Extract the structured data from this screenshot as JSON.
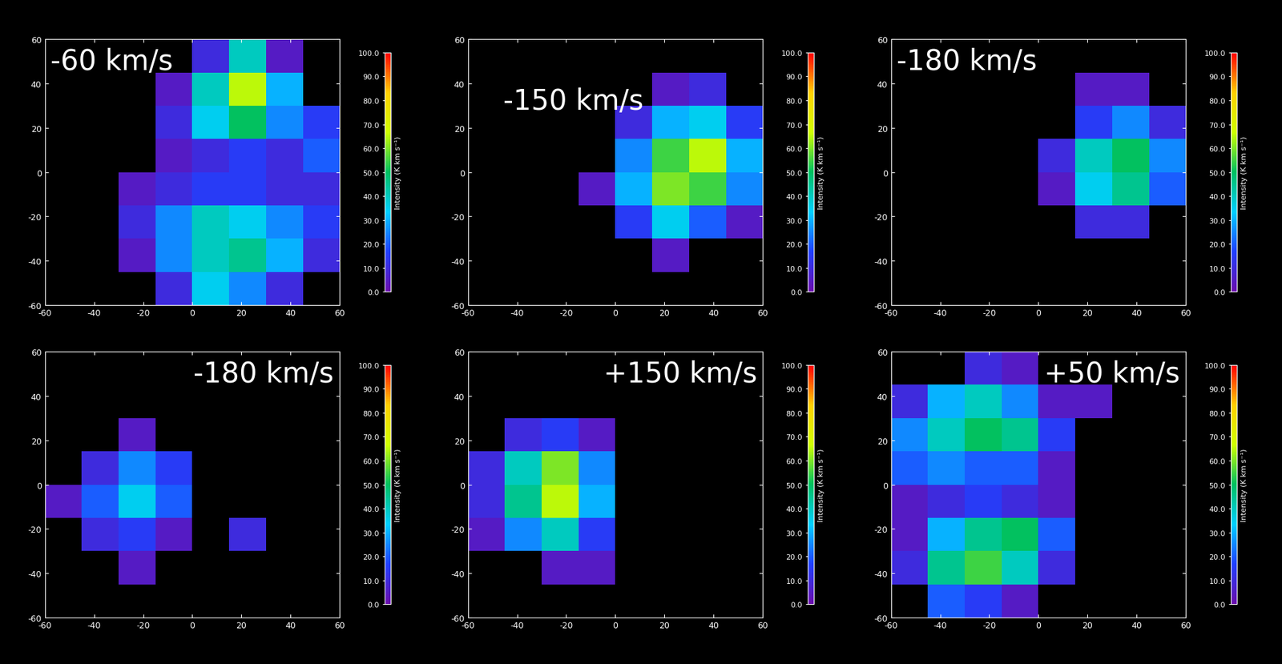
{
  "chart_data": [
    {
      "type": "heatmap",
      "title": "-60 km/s",
      "x": [
        -52.5,
        -37.5,
        -22.5,
        -7.5,
        7.5,
        22.5,
        37.5,
        52.5
      ],
      "y": [
        52.5,
        37.5,
        22.5,
        7.5,
        -7.5,
        -22.5,
        -37.5,
        -52.5
      ],
      "cells": [
        [
          0,
          0,
          0,
          0,
          10,
          40,
          5,
          0
        ],
        [
          0,
          0,
          0,
          5,
          40,
          65,
          30,
          0
        ],
        [
          0,
          0,
          0,
          10,
          35,
          50,
          25,
          15
        ],
        [
          0,
          0,
          0,
          5,
          10,
          15,
          10,
          20
        ],
        [
          0,
          0,
          5,
          10,
          15,
          15,
          10,
          10
        ],
        [
          0,
          0,
          10,
          25,
          40,
          35,
          25,
          15
        ],
        [
          0,
          0,
          5,
          25,
          40,
          45,
          30,
          10
        ],
        [
          0,
          0,
          0,
          10,
          35,
          25,
          10,
          0
        ]
      ],
      "xlim": [
        -60,
        60
      ],
      "ylim": [
        -60,
        60
      ],
      "xticks": [
        -60,
        -40,
        -20,
        0,
        20,
        40,
        60
      ],
      "yticks": [
        -60,
        -40,
        -20,
        0,
        20,
        40,
        60
      ],
      "colorbar": {
        "label": "Intensity (K km s⁻¹)",
        "range": [
          0,
          100
        ],
        "ticks": [
          {
            "value": 0,
            "label": "0.0"
          },
          {
            "value": 10,
            "label": "10.0"
          },
          {
            "value": 20,
            "label": "20.0"
          },
          {
            "value": 30,
            "label": "30.0"
          },
          {
            "value": 40,
            "label": "40.0"
          },
          {
            "value": 50,
            "label": "50.0"
          },
          {
            "value": 60,
            "label": "60.0"
          },
          {
            "value": 70,
            "label": "70.0"
          },
          {
            "value": 80,
            "label": "80.0"
          },
          {
            "value": 90,
            "label": "90.0"
          },
          {
            "value": 100,
            "label": "100.0"
          }
        ]
      }
    },
    {
      "type": "heatmap",
      "title": "-150 km/s",
      "x": [
        -52.5,
        -37.5,
        -22.5,
        -7.5,
        7.5,
        22.5,
        37.5,
        52.5
      ],
      "y": [
        52.5,
        37.5,
        22.5,
        7.5,
        -7.5,
        -22.5,
        -37.5,
        -52.5
      ],
      "cells": [
        [
          0,
          0,
          0,
          0,
          0,
          0,
          0,
          0
        ],
        [
          0,
          0,
          0,
          0,
          0,
          5,
          10,
          0
        ],
        [
          0,
          0,
          0,
          0,
          10,
          30,
          35,
          15
        ],
        [
          0,
          0,
          0,
          0,
          25,
          55,
          65,
          30
        ],
        [
          0,
          0,
          0,
          5,
          30,
          60,
          55,
          25
        ],
        [
          0,
          0,
          0,
          0,
          15,
          35,
          20,
          5
        ],
        [
          0,
          0,
          0,
          0,
          0,
          5,
          0,
          0
        ],
        [
          0,
          0,
          0,
          0,
          0,
          0,
          0,
          0
        ]
      ],
      "xlim": [
        -60,
        60
      ],
      "ylim": [
        -60,
        60
      ],
      "xticks": [
        -60,
        -40,
        -20,
        0,
        20,
        40,
        60
      ],
      "yticks": [
        -60,
        -40,
        -20,
        0,
        20,
        40,
        60
      ],
      "colorbar": {
        "label": "Intensity (K km s⁻¹)",
        "range": [
          0,
          100
        ],
        "ticks": [
          {
            "value": 0,
            "label": "0.0"
          },
          {
            "value": 10,
            "label": "10.0"
          },
          {
            "value": 20,
            "label": "20.0"
          },
          {
            "value": 30,
            "label": "30.0"
          },
          {
            "value": 40,
            "label": "40.0"
          },
          {
            "value": 50,
            "label": "50.0"
          },
          {
            "value": 60,
            "label": "60.0"
          },
          {
            "value": 70,
            "label": "70.0"
          },
          {
            "value": 80,
            "label": "80.0"
          },
          {
            "value": 90,
            "label": "90.0"
          },
          {
            "value": 100,
            "label": "100.0"
          }
        ]
      }
    },
    {
      "type": "heatmap",
      "title": "-180 km/s",
      "x": [
        -52.5,
        -37.5,
        -22.5,
        -7.5,
        7.5,
        22.5,
        37.5,
        52.5
      ],
      "y": [
        52.5,
        37.5,
        22.5,
        7.5,
        -7.5,
        -22.5,
        -37.5,
        -52.5
      ],
      "cells": [
        [
          0,
          0,
          0,
          0,
          0,
          0,
          0,
          0
        ],
        [
          0,
          0,
          0,
          0,
          0,
          5,
          5,
          0
        ],
        [
          0,
          0,
          0,
          0,
          0,
          15,
          25,
          10
        ],
        [
          0,
          0,
          0,
          0,
          10,
          40,
          50,
          25
        ],
        [
          0,
          0,
          0,
          0,
          5,
          35,
          45,
          20
        ],
        [
          0,
          0,
          0,
          0,
          0,
          10,
          10,
          0
        ],
        [
          0,
          0,
          0,
          0,
          0,
          0,
          0,
          0
        ],
        [
          0,
          0,
          0,
          0,
          0,
          0,
          0,
          0
        ]
      ],
      "xlim": [
        -60,
        60
      ],
      "ylim": [
        -60,
        60
      ],
      "xticks": [
        -60,
        -40,
        -20,
        0,
        20,
        40,
        60
      ],
      "yticks": [
        -60,
        -40,
        -20,
        0,
        20,
        40,
        60
      ],
      "colorbar": {
        "label": "Intensity (K km s⁻¹)",
        "range": [
          0,
          100
        ],
        "ticks": [
          {
            "value": 0,
            "label": "0.0"
          },
          {
            "value": 10,
            "label": "10.0"
          },
          {
            "value": 20,
            "label": "20.0"
          },
          {
            "value": 30,
            "label": "30.0"
          },
          {
            "value": 40,
            "label": "40.0"
          },
          {
            "value": 50,
            "label": "50.0"
          },
          {
            "value": 60,
            "label": "60.0"
          },
          {
            "value": 70,
            "label": "70.0"
          },
          {
            "value": 80,
            "label": "80.0"
          },
          {
            "value": 90,
            "label": "90.0"
          },
          {
            "value": 100,
            "label": "100.0"
          }
        ]
      }
    },
    {
      "type": "heatmap",
      "title": "-180 km/s",
      "x": [
        -52.5,
        -37.5,
        -22.5,
        -7.5,
        7.5,
        22.5,
        37.5,
        52.5
      ],
      "y": [
        52.5,
        37.5,
        22.5,
        7.5,
        -7.5,
        -22.5,
        -37.5,
        -52.5
      ],
      "cells": [
        [
          0,
          0,
          0,
          0,
          0,
          0,
          0,
          0
        ],
        [
          0,
          0,
          0,
          0,
          0,
          0,
          0,
          0
        ],
        [
          0,
          0,
          5,
          0,
          0,
          0,
          0,
          0
        ],
        [
          0,
          10,
          25,
          15,
          0,
          0,
          0,
          0
        ],
        [
          5,
          20,
          35,
          20,
          0,
          0,
          0,
          0
        ],
        [
          0,
          10,
          15,
          5,
          0,
          10,
          0,
          0
        ],
        [
          0,
          0,
          5,
          0,
          0,
          0,
          0,
          0
        ],
        [
          0,
          0,
          0,
          0,
          0,
          0,
          0,
          0
        ]
      ],
      "xlim": [
        -60,
        60
      ],
      "ylim": [
        -60,
        60
      ],
      "xticks": [
        -60,
        -40,
        -20,
        0,
        20,
        40,
        60
      ],
      "yticks": [
        -60,
        -40,
        -20,
        0,
        20,
        40,
        60
      ],
      "colorbar": {
        "label": "Intensity (K km s⁻¹)",
        "range": [
          0,
          100
        ],
        "ticks": [
          {
            "value": 0,
            "label": "0.0"
          },
          {
            "value": 10,
            "label": "10.0"
          },
          {
            "value": 20,
            "label": "20.0"
          },
          {
            "value": 30,
            "label": "30.0"
          },
          {
            "value": 40,
            "label": "40.0"
          },
          {
            "value": 50,
            "label": "50.0"
          },
          {
            "value": 60,
            "label": "60.0"
          },
          {
            "value": 70,
            "label": "70.0"
          },
          {
            "value": 80,
            "label": "80.0"
          },
          {
            "value": 90,
            "label": "90.0"
          },
          {
            "value": 100,
            "label": "100.0"
          }
        ]
      }
    },
    {
      "type": "heatmap",
      "title": "+150 km/s",
      "x": [
        -52.5,
        -37.5,
        -22.5,
        -7.5,
        7.5,
        22.5,
        37.5,
        52.5
      ],
      "y": [
        52.5,
        37.5,
        22.5,
        7.5,
        -7.5,
        -22.5,
        -37.5,
        -52.5
      ],
      "cells": [
        [
          0,
          0,
          0,
          0,
          0,
          0,
          0,
          0
        ],
        [
          0,
          0,
          0,
          0,
          0,
          0,
          0,
          0
        ],
        [
          0,
          10,
          15,
          5,
          0,
          0,
          0,
          0
        ],
        [
          10,
          40,
          60,
          25,
          0,
          0,
          0,
          0
        ],
        [
          10,
          45,
          65,
          30,
          0,
          0,
          0,
          0
        ],
        [
          5,
          25,
          40,
          15,
          0,
          0,
          0,
          0
        ],
        [
          0,
          0,
          5,
          5,
          0,
          0,
          0,
          0
        ],
        [
          0,
          0,
          0,
          0,
          0,
          0,
          0,
          0
        ]
      ],
      "xlim": [
        -60,
        60
      ],
      "ylim": [
        -60,
        60
      ],
      "xticks": [
        -60,
        -40,
        -20,
        0,
        20,
        40,
        60
      ],
      "yticks": [
        -60,
        -40,
        -20,
        0,
        20,
        40,
        60
      ],
      "colorbar": {
        "label": "Intensity (K km s⁻¹)",
        "range": [
          0,
          100
        ],
        "ticks": [
          {
            "value": 0,
            "label": "0.0"
          },
          {
            "value": 10,
            "label": "10.0"
          },
          {
            "value": 20,
            "label": "20.0"
          },
          {
            "value": 30,
            "label": "30.0"
          },
          {
            "value": 40,
            "label": "40.0"
          },
          {
            "value": 50,
            "label": "50.0"
          },
          {
            "value": 60,
            "label": "60.0"
          },
          {
            "value": 70,
            "label": "70.0"
          },
          {
            "value": 80,
            "label": "80.0"
          },
          {
            "value": 90,
            "label": "90.0"
          },
          {
            "value": 100,
            "label": "100.0"
          }
        ]
      }
    },
    {
      "type": "heatmap",
      "title": "+50 km/s",
      "x": [
        -52.5,
        -37.5,
        -22.5,
        -7.5,
        7.5,
        22.5,
        37.5,
        52.5
      ],
      "y": [
        52.5,
        37.5,
        22.5,
        7.5,
        -7.5,
        -22.5,
        -37.5,
        -52.5
      ],
      "cells": [
        [
          0,
          0,
          10,
          5,
          0,
          0,
          0,
          0
        ],
        [
          10,
          30,
          40,
          25,
          5,
          5,
          0,
          0
        ],
        [
          25,
          40,
          50,
          45,
          15,
          0,
          0,
          0
        ],
        [
          20,
          25,
          20,
          20,
          5,
          0,
          0,
          0
        ],
        [
          5,
          10,
          15,
          10,
          5,
          0,
          0,
          0
        ],
        [
          5,
          30,
          45,
          50,
          20,
          0,
          0,
          0
        ],
        [
          10,
          45,
          55,
          40,
          10,
          0,
          0,
          0
        ],
        [
          0,
          20,
          15,
          5,
          0,
          0,
          0,
          0
        ]
      ],
      "xlim": [
        -60,
        60
      ],
      "ylim": [
        -60,
        60
      ],
      "xticks": [
        -60,
        -40,
        -20,
        0,
        20,
        40,
        60
      ],
      "yticks": [
        -60,
        -40,
        -20,
        0,
        20,
        40,
        60
      ],
      "colorbar": {
        "label": "Intensity (K km s⁻¹)",
        "range": [
          0,
          100
        ],
        "ticks": [
          {
            "value": 0,
            "label": "0.0"
          },
          {
            "value": 10,
            "label": "10.0"
          },
          {
            "value": 20,
            "label": "20.0"
          },
          {
            "value": 30,
            "label": "30.0"
          },
          {
            "value": 40,
            "label": "40.0"
          },
          {
            "value": 50,
            "label": "50.0"
          },
          {
            "value": 60,
            "label": "60.0"
          },
          {
            "value": 70,
            "label": "70.0"
          },
          {
            "value": 80,
            "label": "80.0"
          },
          {
            "value": 90,
            "label": "90.0"
          },
          {
            "value": 100,
            "label": "100.0"
          }
        ]
      }
    }
  ]
}
